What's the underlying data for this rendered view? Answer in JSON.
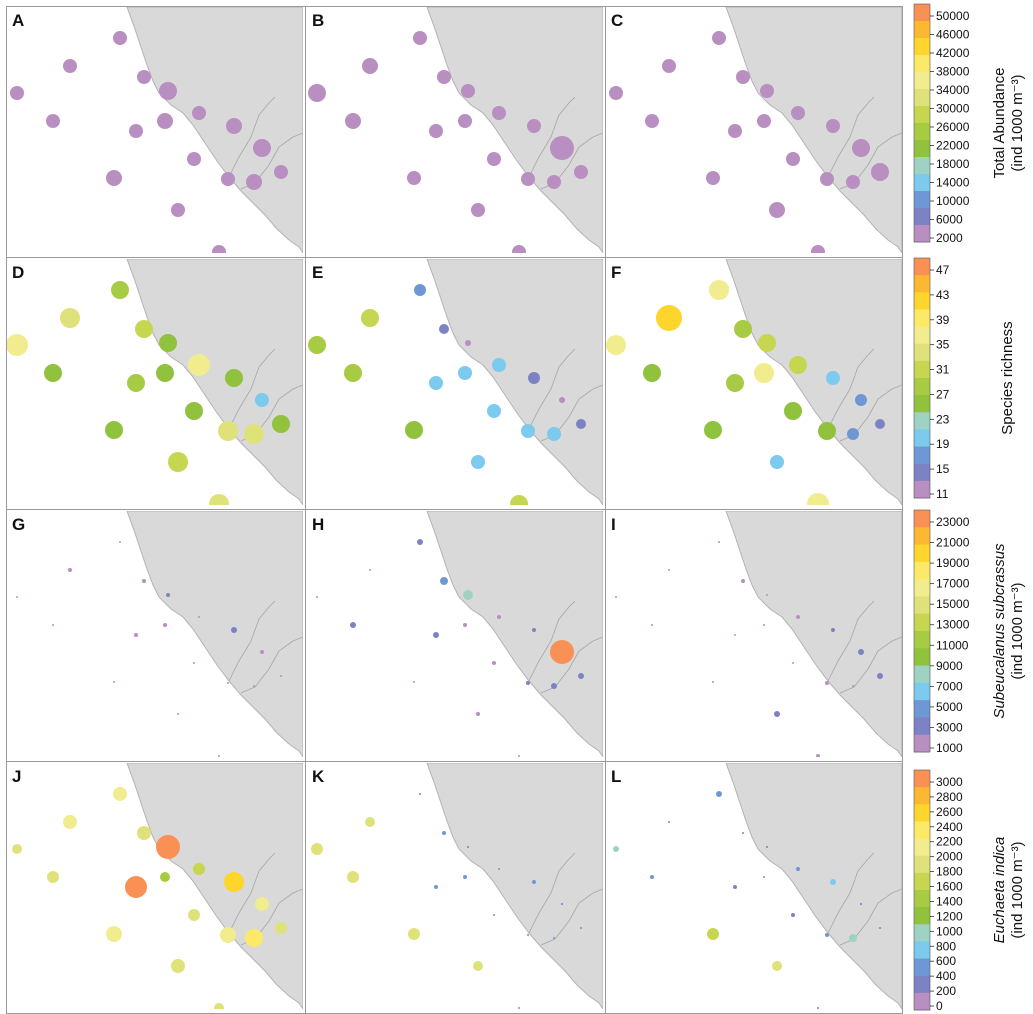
{
  "colors": {
    "land": "#d9d9d9",
    "land_stroke": "#b3b3b3",
    "border": "#a6a6a6",
    "frame": "#9a9a9a",
    "scale": [
      "#b98fc1",
      "#7c82c4",
      "#6e98d4",
      "#7ccaed",
      "#9ed3c3",
      "#90c23e",
      "#a8cb44",
      "#c7d650",
      "#dfe27a",
      "#f1ec8d",
      "#fde968",
      "#fed52c",
      "#fcb832",
      "#f99155"
    ]
  },
  "stations": [
    [
      113,
      31
    ],
    [
      63,
      59
    ],
    [
      137,
      70
    ],
    [
      161,
      84
    ],
    [
      10,
      86
    ],
    [
      46,
      114
    ],
    [
      192,
      106
    ],
    [
      158,
      114
    ],
    [
      129,
      124
    ],
    [
      227,
      119
    ],
    [
      255,
      141
    ],
    [
      187,
      152
    ],
    [
      274,
      165
    ],
    [
      107,
      171
    ],
    [
      221,
      172
    ],
    [
      247,
      175
    ],
    [
      171,
      203
    ],
    [
      212,
      245
    ]
  ],
  "panels": [
    {
      "letter": "A",
      "row": 0,
      "col": 0,
      "variable": "abundance",
      "values": [
        8,
        12,
        9,
        22,
        9,
        9,
        6,
        16,
        8,
        15,
        22,
        6,
        7,
        15,
        6,
        11,
        9,
        6
      ],
      "sizes": [
        7,
        7,
        7,
        9,
        7,
        7,
        7,
        8,
        7,
        8,
        9,
        7,
        7,
        8,
        7,
        8,
        7,
        7
      ]
    },
    {
      "letter": "B",
      "row": 0,
      "col": 1,
      "variable": "abundance",
      "values": [
        11,
        20,
        13,
        7,
        22,
        20,
        6,
        6,
        9,
        8,
        48,
        11,
        9,
        5,
        6,
        6,
        5,
        7
      ],
      "sizes": [
        7,
        8,
        7,
        7,
        9,
        8,
        7,
        7,
        7,
        7,
        12,
        7,
        7,
        7,
        7,
        7,
        7,
        7
      ]
    },
    {
      "letter": "C",
      "row": 0,
      "col": 2,
      "variable": "abundance",
      "values": [
        4,
        10,
        4,
        4,
        11,
        4,
        9,
        9,
        5,
        6,
        22,
        11,
        22,
        4,
        7,
        11,
        14,
        11
      ],
      "sizes": [
        7,
        7,
        7,
        7,
        7,
        7,
        7,
        7,
        7,
        7,
        9,
        7,
        9,
        7,
        7,
        7,
        8,
        7
      ]
    },
    {
      "letter": "D",
      "row": 1,
      "col": 0,
      "variable": "richness",
      "values": [
        27,
        33,
        30,
        26,
        37,
        26,
        37,
        26,
        28,
        26,
        20,
        25,
        26,
        26,
        32,
        32,
        31,
        33
      ],
      "sizes": [
        9,
        10,
        9,
        9,
        11,
        9,
        11,
        9,
        9,
        9,
        7,
        9,
        9,
        9,
        10,
        10,
        10,
        10
      ]
    },
    {
      "letter": "E",
      "row": 1,
      "col": 1,
      "variable": "richness",
      "values": [
        17,
        30,
        13,
        11,
        28,
        28,
        20,
        20,
        20,
        14,
        11,
        18,
        13,
        26,
        18,
        19,
        18,
        29
      ],
      "sizes": [
        6,
        9,
        5,
        3,
        9,
        9,
        7,
        7,
        7,
        6,
        3,
        7,
        5,
        9,
        7,
        7,
        7,
        9
      ]
    },
    {
      "letter": "F",
      "row": 1,
      "col": 2,
      "variable": "richness",
      "values": [
        35,
        41,
        27,
        29,
        35,
        26,
        29,
        35,
        28,
        20,
        15,
        24,
        12,
        26,
        24,
        15,
        20,
        37
      ],
      "sizes": [
        10,
        13,
        9,
        9,
        10,
        9,
        9,
        10,
        9,
        7,
        6,
        9,
        5,
        9,
        9,
        6,
        7,
        11
      ]
    },
    {
      "letter": "G",
      "row": 2,
      "col": 0,
      "variable": "subeucalanus",
      "values": [
        300,
        1500,
        1000,
        1800,
        1000,
        300,
        300,
        1000,
        1000,
        2200,
        1500,
        1000,
        300,
        1000,
        300,
        300,
        300,
        300
      ],
      "sizes": [
        1,
        2,
        2,
        2,
        1,
        1,
        1,
        2,
        2,
        3,
        2,
        1,
        1,
        1,
        1,
        1,
        1,
        1
      ]
    },
    {
      "letter": "H",
      "row": 2,
      "col": 1,
      "variable": "subeucalanus",
      "values": [
        2500,
        300,
        3500,
        7000,
        1000,
        2500,
        1500,
        1500,
        2500,
        1800,
        23000,
        1500,
        2000,
        1000,
        1800,
        1800,
        1500,
        1000
      ],
      "sizes": [
        3,
        1,
        4,
        5,
        1,
        3,
        2,
        2,
        3,
        2,
        12,
        2,
        3,
        1,
        2,
        3,
        2,
        1
      ]
    },
    {
      "letter": "I",
      "row": 2,
      "col": 2,
      "variable": "subeucalanus",
      "values": [
        1000,
        300,
        1000,
        300,
        300,
        300,
        1500,
        300,
        300,
        1800,
        2500,
        300,
        2500,
        300,
        1500,
        300,
        2000,
        1000
      ],
      "sizes": [
        1,
        1,
        2,
        1,
        1,
        1,
        2,
        1,
        1,
        2,
        3,
        1,
        3,
        1,
        2,
        1,
        3,
        2
      ]
    },
    {
      "letter": "J",
      "row": 3,
      "col": 0,
      "variable": "euchaeta",
      "values": [
        2000,
        2000,
        1900,
        3050,
        1900,
        1900,
        1600,
        1500,
        2900,
        2500,
        2000,
        1900,
        1900,
        2200,
        2100,
        2400,
        1900,
        1900
      ],
      "sizes": [
        7,
        7,
        7,
        12,
        5,
        6,
        6,
        5,
        11,
        10,
        7,
        6,
        6,
        8,
        8,
        9,
        7,
        5
      ]
    },
    {
      "letter": "K",
      "row": 3,
      "col": 1,
      "variable": "euchaeta",
      "values": [
        400,
        1900,
        500,
        400,
        1900,
        1900,
        500,
        500,
        500,
        500,
        400,
        500,
        500,
        1900,
        500,
        500,
        1900,
        500
      ],
      "sizes": [
        1,
        5,
        2,
        1,
        6,
        6,
        1,
        2,
        2,
        2,
        1,
        1,
        1,
        6,
        1,
        1,
        5,
        1
      ]
    },
    {
      "letter": "L",
      "row": 3,
      "col": 2,
      "variable": "euchaeta",
      "values": [
        600,
        400,
        300,
        300,
        1100,
        600,
        500,
        500,
        300,
        700,
        400,
        400,
        300,
        1700,
        500,
        1100,
        1900,
        300
      ],
      "sizes": [
        3,
        1,
        1,
        1,
        3,
        2,
        2,
        1,
        2,
        3,
        1,
        2,
        1,
        6,
        2,
        4,
        5,
        1
      ]
    }
  ],
  "legends": [
    {
      "id": "abundance",
      "title": [
        "Total Abundance",
        "(ind 1000 m⁻³)"
      ],
      "title_italic": false,
      "ticks": [
        "50000",
        "46000",
        "42000",
        "38000",
        "34000",
        "30000",
        "26000",
        "22000",
        "18000",
        "14000",
        "10000",
        "6000",
        "2000"
      ]
    },
    {
      "id": "richness",
      "title": [
        "Species richness"
      ],
      "title_italic": false,
      "ticks": [
        "47",
        "43",
        "39",
        "35",
        "31",
        "27",
        "23",
        "19",
        "15",
        "11"
      ]
    },
    {
      "id": "subeucalanus",
      "title": [
        "Subeucalanus subcrassus",
        "(ind 1000 m⁻³)"
      ],
      "title_italic": true,
      "ticks": [
        "23000",
        "21000",
        "19000",
        "17000",
        "15000",
        "13000",
        "11000",
        "9000",
        "7000",
        "5000",
        "3000",
        "1000"
      ]
    },
    {
      "id": "euchaeta",
      "title": [
        "Euchaeta indica",
        "(ind 1000 m⁻³)"
      ],
      "title_italic": true,
      "ticks": [
        "3000",
        "2800",
        "2600",
        "2400",
        "2200",
        "2000",
        "1800",
        "1600",
        "1400",
        "1200",
        "1000",
        "800",
        "600",
        "400",
        "200",
        "0"
      ]
    }
  ]
}
